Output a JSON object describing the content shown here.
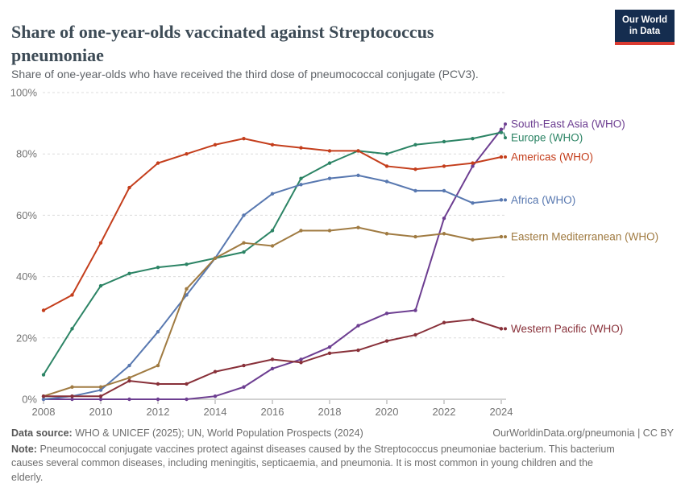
{
  "header": {
    "title": "Share of one-year-olds vaccinated against Streptococcus pneumoniae",
    "subtitle": "Share of one-year-olds who have received the third dose of pneumococcal conjugate (PCV3).",
    "logo": {
      "line1": "Our World",
      "line2": "in Data",
      "bg_color": "#152D4F",
      "accent_color": "#DB3B31"
    }
  },
  "chart_data": {
    "type": "line",
    "title": "Share of one-year-olds vaccinated against Streptococcus pneumoniae",
    "x": [
      2008,
      2009,
      2010,
      2011,
      2012,
      2013,
      2014,
      2015,
      2016,
      2017,
      2018,
      2019,
      2020,
      2021,
      2022,
      2023,
      2024
    ],
    "x_ticks": [
      2008,
      2010,
      2012,
      2014,
      2016,
      2018,
      2020,
      2022,
      2024
    ],
    "x_tick_labels": [
      "2008",
      "2010",
      "2012",
      "2014",
      "2016",
      "2018",
      "2020",
      "2022",
      "2024"
    ],
    "y_ticks": [
      0,
      20,
      40,
      60,
      80,
      100
    ],
    "y_tick_labels": [
      "0%",
      "20%",
      "40%",
      "60%",
      "80%",
      "100%"
    ],
    "ylim": [
      0,
      100
    ],
    "grid": true,
    "legend_position": "right-edge-labels",
    "series": [
      {
        "name": "South-East Asia (WHO)",
        "color": "#6D3E91",
        "values": [
          0,
          0,
          0,
          0,
          0,
          0,
          1,
          4,
          10,
          13,
          17,
          24,
          28,
          29,
          59,
          76,
          88
        ]
      },
      {
        "name": "Europe (WHO)",
        "color": "#2C8465",
        "values": [
          8,
          23,
          37,
          41,
          43,
          44,
          46,
          48,
          55,
          72,
          77,
          81,
          80,
          83,
          84,
          85,
          87
        ]
      },
      {
        "name": "Americas (WHO)",
        "color": "#C43E1C",
        "values": [
          29,
          34,
          51,
          69,
          77,
          80,
          83,
          85,
          83,
          82,
          81,
          81,
          76,
          75,
          76,
          77,
          79
        ]
      },
      {
        "name": "Africa (WHO)",
        "color": "#5878B0",
        "values": [
          0,
          1,
          3,
          11,
          22,
          34,
          46,
          60,
          67,
          70,
          72,
          73,
          71,
          68,
          68,
          64,
          65
        ]
      },
      {
        "name": "Eastern Mediterranean (WHO)",
        "color": "#A07B42",
        "values": [
          1,
          4,
          4,
          7,
          11,
          36,
          46,
          51,
          50,
          55,
          55,
          56,
          54,
          53,
          54,
          52,
          53
        ]
      },
      {
        "name": "Western Pacific (WHO)",
        "color": "#883039",
        "values": [
          1,
          1,
          1,
          6,
          5,
          5,
          9,
          11,
          13,
          12,
          15,
          16,
          19,
          21,
          25,
          26,
          23
        ]
      }
    ]
  },
  "footer": {
    "datasource_label": "Data source:",
    "datasource_text": "WHO & UNICEF (2025); UN, World Population Prospects (2024)",
    "attribution": "OurWorldinData.org/pneumonia | CC BY",
    "note_label": "Note:",
    "note_text": "Pneumococcal conjugate vaccines protect against diseases caused by the Streptococcus pneumoniae bacterium. This bacterium causes several common diseases, including meningitis, septicaemia, and pneumonia. It is most common in young children and the elderly."
  }
}
